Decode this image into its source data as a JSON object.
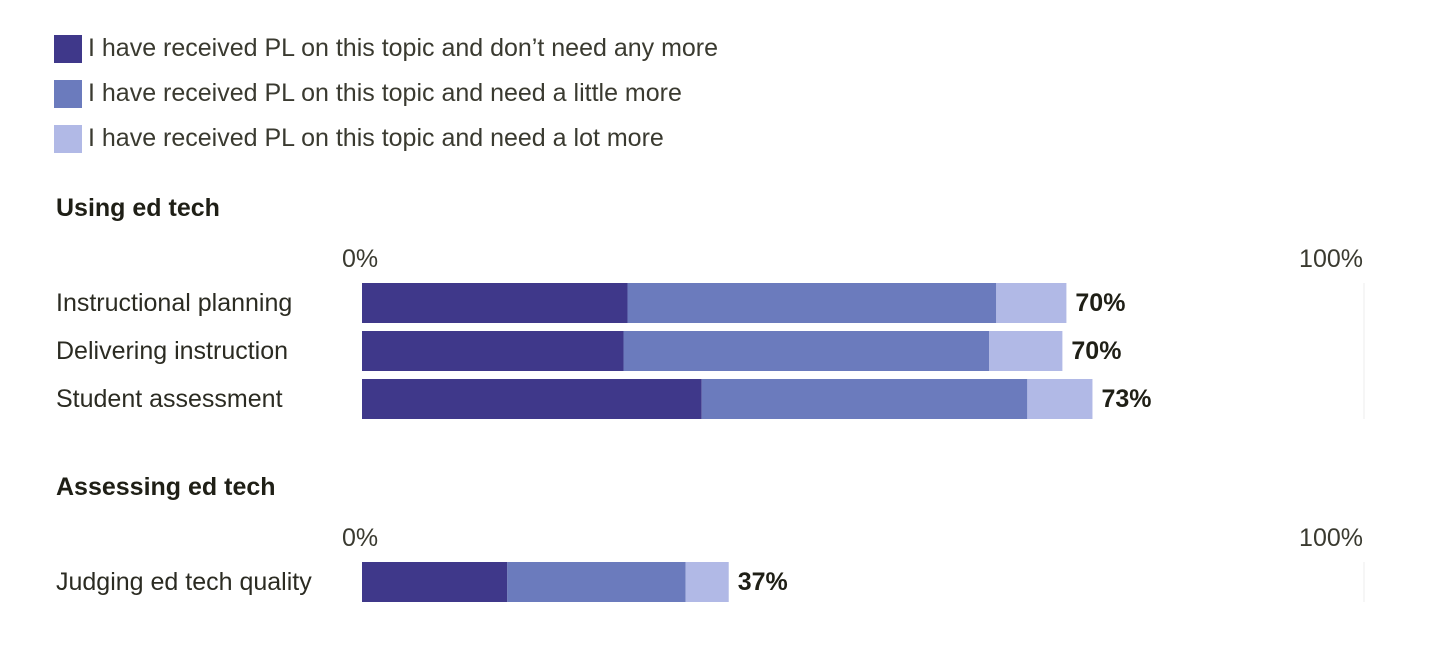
{
  "chart_data": {
    "type": "bar",
    "orientation": "horizontal",
    "stacked": true,
    "xlim": [
      0,
      100
    ],
    "x_unit": "%",
    "legend_placement": "top-left",
    "series": [
      {
        "name": "I have received PL on this topic and don’t need any more",
        "color": "#3f388a"
      },
      {
        "name": "I have received PL on this topic and need a little more",
        "color": "#6b7bbd"
      },
      {
        "name": "I have received PL on this topic and need a lot more",
        "color": "#b1b9e6"
      }
    ],
    "groups": [
      {
        "title": "Using ed tech",
        "tick_labels": [
          "0%",
          "100%"
        ],
        "rows": [
          {
            "label": "Instructional planning",
            "values": [
              26.5,
              36.8,
              7.0
            ],
            "total_label": "70%"
          },
          {
            "label": "Delivering instruction",
            "values": [
              26.1,
              36.5,
              7.3
            ],
            "total_label": "70%"
          },
          {
            "label": "Student assessment",
            "values": [
              33.9,
              32.5,
              6.5
            ],
            "total_label": "73%"
          }
        ]
      },
      {
        "title": "Assessing ed tech",
        "tick_labels": [
          "0%",
          "100%"
        ],
        "rows": [
          {
            "label": "Judging ed tech quality",
            "values": [
              14.5,
              17.8,
              4.3
            ],
            "total_label": "37%"
          }
        ]
      }
    ]
  }
}
